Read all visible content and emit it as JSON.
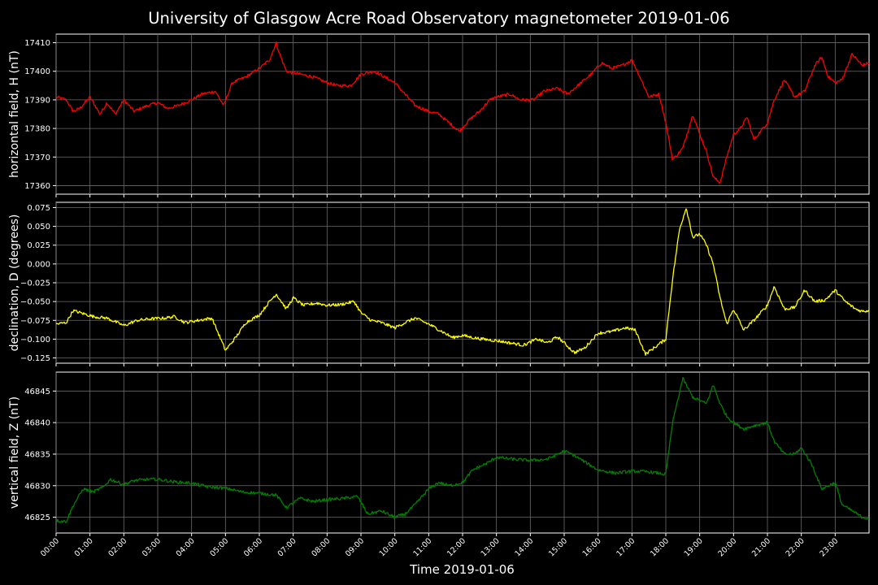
{
  "chart_data": {
    "type": "line",
    "title": "University of Glasgow Acre Road Observatory magnetometer 2019-01-06",
    "xlabel": "Time 2019-01-06",
    "x_tick_labels": [
      "00:00",
      "01:00",
      "02:00",
      "03:00",
      "04:00",
      "05:00",
      "06:00",
      "07:00",
      "08:00",
      "09:00",
      "10:00",
      "11:00",
      "12:00",
      "13:00",
      "14:00",
      "15:00",
      "16:00",
      "17:00",
      "18:00",
      "19:00",
      "20:00",
      "21:00",
      "22:00",
      "23:00"
    ],
    "xlim_hours": [
      0,
      24
    ],
    "grid": true,
    "panels": [
      {
        "ylabel": "horizontal field, H (nT)",
        "color": "#ff0000",
        "ylim": [
          17357,
          17413
        ],
        "yticks": [
          17360,
          17370,
          17380,
          17390,
          17400,
          17410
        ],
        "ytick_labels": [
          "17360",
          "17370",
          "17380",
          "17390",
          "17400",
          "17410"
        ],
        "x": [
          0,
          0.3,
          0.5,
          0.7,
          1.0,
          1.3,
          1.5,
          1.75,
          2.0,
          2.3,
          2.7,
          3.0,
          3.3,
          3.6,
          4.0,
          4.3,
          4.7,
          4.95,
          5.2,
          5.6,
          6.0,
          6.3,
          6.5,
          6.6,
          6.8,
          7.2,
          7.6,
          8.0,
          8.3,
          8.7,
          9.0,
          9.4,
          9.7,
          10.0,
          10.3,
          10.6,
          11.0,
          11.3,
          11.6,
          11.9,
          12.2,
          12.5,
          12.8,
          13.0,
          13.4,
          13.7,
          14.1,
          14.4,
          14.8,
          15.1,
          15.4,
          15.8,
          16.1,
          16.4,
          16.7,
          17.0,
          17.2,
          17.5,
          17.8,
          18.0,
          18.2,
          18.5,
          18.8,
          19.0,
          19.2,
          19.4,
          19.6,
          19.8,
          20.0,
          20.2,
          20.4,
          20.6,
          21.0,
          21.2,
          21.5,
          21.8,
          22.1,
          22.4,
          22.6,
          22.8,
          23.0,
          23.2,
          23.5,
          23.8,
          24.0
        ],
        "values": [
          17391,
          17390,
          17386,
          17387,
          17391,
          17385,
          17389,
          17385,
          17390,
          17386,
          17388,
          17389,
          17387,
          17388,
          17390,
          17392,
          17393,
          17388,
          17396,
          17398,
          17401,
          17404,
          17410,
          17406,
          17400,
          17399,
          17398,
          17396,
          17395,
          17395,
          17399,
          17400,
          17398,
          17396,
          17392,
          17388,
          17386,
          17385,
          17382,
          17379,
          17383,
          17386,
          17390,
          17391,
          17392,
          17390,
          17390,
          17393,
          17394,
          17392,
          17395,
          17399,
          17403,
          17401,
          17402,
          17404,
          17399,
          17391,
          17392,
          17382,
          17369,
          17373,
          17385,
          17378,
          17372,
          17363,
          17361,
          17370,
          17378,
          17380,
          17384,
          17376,
          17382,
          17390,
          17397,
          17391,
          17393,
          17402,
          17405,
          17398,
          17396,
          17397,
          17406,
          17402,
          17403
        ]
      },
      {
        "ylabel": "declination, D (degrees)",
        "color": "#ffff00",
        "ylim": [
          -0.132,
          0.082
        ],
        "yticks": [
          -0.125,
          -0.1,
          -0.075,
          -0.05,
          -0.025,
          0.0,
          0.025,
          0.05,
          0.075
        ],
        "ytick_labels": [
          "−0.125",
          "−0.100",
          "−0.075",
          "−0.050",
          "−0.025",
          "0.000",
          "0.025",
          "0.050",
          "0.075"
        ],
        "x": [
          0,
          0.3,
          0.5,
          0.8,
          1.1,
          1.5,
          2.0,
          2.4,
          2.8,
          3.2,
          3.5,
          3.8,
          4.2,
          4.6,
          5.0,
          5.3,
          5.6,
          6.0,
          6.3,
          6.5,
          6.8,
          7.0,
          7.3,
          7.7,
          8.0,
          8.4,
          8.8,
          9.0,
          9.3,
          9.6,
          10.0,
          10.3,
          10.6,
          11.0,
          11.4,
          11.7,
          12.0,
          12.3,
          12.6,
          13.0,
          13.4,
          13.8,
          14.2,
          14.5,
          14.8,
          15.0,
          15.3,
          15.6,
          16.0,
          16.4,
          16.8,
          17.1,
          17.4,
          17.7,
          18.0,
          18.2,
          18.4,
          18.6,
          18.8,
          19.0,
          19.2,
          19.4,
          19.6,
          19.8,
          20.0,
          20.3,
          20.6,
          21.0,
          21.2,
          21.5,
          21.8,
          22.1,
          22.4,
          22.7,
          23.0,
          23.3,
          23.6,
          23.8,
          24.0
        ],
        "values": [
          -0.08,
          -0.078,
          -0.062,
          -0.066,
          -0.07,
          -0.072,
          -0.082,
          -0.075,
          -0.073,
          -0.072,
          -0.07,
          -0.078,
          -0.075,
          -0.072,
          -0.115,
          -0.098,
          -0.078,
          -0.068,
          -0.05,
          -0.04,
          -0.06,
          -0.045,
          -0.055,
          -0.052,
          -0.055,
          -0.054,
          -0.05,
          -0.065,
          -0.075,
          -0.078,
          -0.085,
          -0.078,
          -0.072,
          -0.08,
          -0.09,
          -0.098,
          -0.095,
          -0.098,
          -0.1,
          -0.102,
          -0.105,
          -0.108,
          -0.1,
          -0.105,
          -0.097,
          -0.105,
          -0.118,
          -0.112,
          -0.092,
          -0.09,
          -0.085,
          -0.088,
          -0.12,
          -0.11,
          -0.1,
          -0.02,
          0.045,
          0.075,
          0.035,
          0.04,
          0.025,
          0.0,
          -0.045,
          -0.08,
          -0.06,
          -0.088,
          -0.075,
          -0.055,
          -0.03,
          -0.06,
          -0.058,
          -0.035,
          -0.05,
          -0.048,
          -0.035,
          -0.05,
          -0.06,
          -0.063,
          -0.062
        ]
      },
      {
        "ylabel": "vertical field, Z (nT)",
        "color": "#008000",
        "ylim": [
          46822.5,
          46848
        ],
        "yticks": [
          46825,
          46830,
          46835,
          46840,
          46845
        ],
        "ytick_labels": [
          "46825",
          "46830",
          "46835",
          "46840",
          "46845"
        ],
        "x": [
          0,
          0.3,
          0.5,
          0.8,
          1.1,
          1.4,
          1.6,
          2.0,
          2.3,
          2.7,
          3.0,
          3.5,
          4.0,
          4.5,
          5.0,
          5.5,
          6.0,
          6.5,
          6.8,
          7.2,
          7.6,
          8.0,
          8.5,
          8.9,
          9.2,
          9.6,
          10.0,
          10.3,
          10.6,
          11.0,
          11.3,
          11.6,
          12.0,
          12.3,
          12.7,
          13.0,
          13.5,
          14.0,
          14.5,
          15.0,
          15.3,
          15.6,
          16.0,
          16.5,
          17.0,
          17.5,
          18.0,
          18.2,
          18.5,
          18.8,
          19.0,
          19.2,
          19.4,
          19.6,
          19.8,
          20.0,
          20.3,
          20.6,
          21.0,
          21.2,
          21.5,
          21.8,
          22.0,
          22.3,
          22.6,
          23.0,
          23.2,
          23.5,
          23.8,
          24.0
        ],
        "values": [
          46824.5,
          46824.3,
          46826.8,
          46829.5,
          46829,
          46829.8,
          46831,
          46830.2,
          46830.8,
          46831,
          46831,
          46830.6,
          46830.4,
          46829.8,
          46829.6,
          46829,
          46828.8,
          46828.5,
          46826.5,
          46828,
          46827.5,
          46827.8,
          46828,
          46828.3,
          46825.5,
          46826,
          46825,
          46825.5,
          46827,
          46829.5,
          46830.5,
          46830,
          46830.5,
          46832.5,
          46833.5,
          46834.5,
          46834.2,
          46834,
          46834.2,
          46835.5,
          46834.8,
          46833.8,
          46832.5,
          46832,
          46832.3,
          46832.2,
          46831.8,
          46840,
          46847,
          46844,
          46843.5,
          46843,
          46846,
          46843,
          46841,
          46840,
          46839,
          46839.5,
          46840,
          46837,
          46835,
          46835,
          46836,
          46833.5,
          46829.5,
          46830.5,
          46827,
          46826,
          46825,
          46824.8
        ]
      }
    ]
  }
}
